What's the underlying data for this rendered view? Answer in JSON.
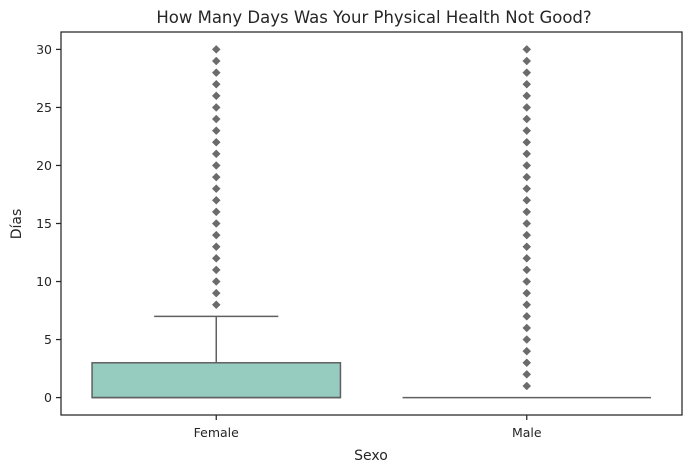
{
  "chart_data": {
    "type": "box",
    "title": "How Many Days Was Your Physical Health Not Good?",
    "xlabel": "Sexo",
    "ylabel": "Días",
    "categories": [
      "Female",
      "Male"
    ],
    "ylim": [
      -1.5,
      31.5
    ],
    "yticks": [
      0,
      5,
      10,
      15,
      20,
      25,
      30
    ],
    "grid": false,
    "boxes": [
      {
        "category": "Female",
        "min": 0,
        "q1": 0,
        "median": 0,
        "q3": 3,
        "max": 7,
        "outliers": [
          8,
          9,
          10,
          11,
          12,
          13,
          14,
          15,
          16,
          17,
          18,
          19,
          20,
          21,
          22,
          23,
          24,
          25,
          26,
          27,
          28,
          29,
          30
        ]
      },
      {
        "category": "Male",
        "min": 0,
        "q1": 0,
        "median": 0,
        "q3": 0,
        "max": 0,
        "outliers": [
          1,
          2,
          3,
          4,
          5,
          6,
          7,
          8,
          9,
          10,
          11,
          12,
          13,
          14,
          15,
          16,
          17,
          18,
          19,
          20,
          21,
          22,
          23,
          24,
          25,
          26,
          27,
          28,
          29,
          30
        ]
      }
    ],
    "colors": {
      "box_fill": "#96cbbf",
      "line": "#606060",
      "outlier": "#6b6b6b",
      "axis": "#262626"
    }
  }
}
